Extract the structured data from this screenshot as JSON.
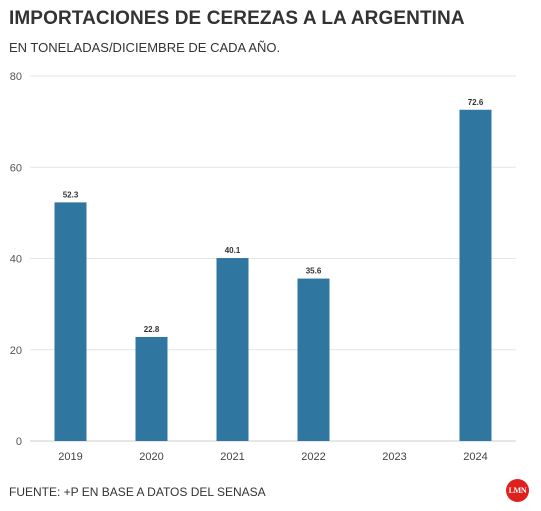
{
  "header": {
    "title": "IMPORTACIONES DE CEREZAS A LA ARGENTINA",
    "subtitle": "EN TONELADAS/DICIEMBRE DE CADA AÑO."
  },
  "footer": {
    "source": "FUENTE: +P EN BASE A DATOS DEL SENASA",
    "logo_text": "LMN"
  },
  "colors": {
    "bar": "#2f77a1",
    "grid": "#e6e6e6",
    "logo": "#e0201f"
  },
  "chart_data": {
    "type": "bar",
    "title": "IMPORTACIONES DE CEREZAS A LA ARGENTINA",
    "subtitle": "EN TONELADAS/DICIEMBRE DE CADA AÑO.",
    "categories": [
      "2019",
      "2020",
      "2021",
      "2022",
      "2023",
      "2024"
    ],
    "values": [
      52.3,
      22.8,
      40.1,
      35.6,
      null,
      72.6
    ],
    "value_labels": [
      "52.3",
      "22.8",
      "40.1",
      "35.6",
      "",
      "72.6"
    ],
    "ylim": [
      0,
      80
    ],
    "yticks": [
      "0",
      "20",
      "40",
      "60",
      "80"
    ],
    "grid": true,
    "legend": "none"
  }
}
